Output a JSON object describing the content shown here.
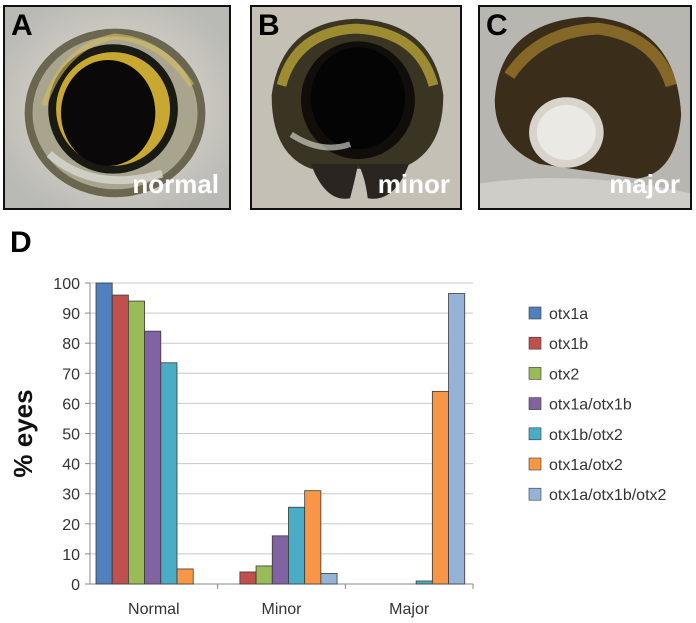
{
  "panels": [
    {
      "letter": "A",
      "label": "normal"
    },
    {
      "letter": "B",
      "label": "minor"
    },
    {
      "letter": "C",
      "label": "major"
    }
  ],
  "chart_letter": "D",
  "chart_data": {
    "type": "bar",
    "title": "",
    "xlabel": "",
    "ylabel": "% eyes",
    "ylim": [
      0,
      100
    ],
    "yticks": [
      0,
      10,
      20,
      30,
      40,
      50,
      60,
      70,
      80,
      90,
      100
    ],
    "grid": true,
    "legend": "right",
    "categories": [
      "Normal",
      "Minor",
      "Major"
    ],
    "series": [
      {
        "name": "otx1a",
        "color": "#4f81bd",
        "values": [
          100,
          0,
          0
        ]
      },
      {
        "name": "otx1b",
        "color": "#c0504d",
        "values": [
          96,
          4,
          0
        ]
      },
      {
        "name": "otx2",
        "color": "#9bbb59",
        "values": [
          94,
          6,
          0
        ]
      },
      {
        "name": "otx1a/otx1b",
        "color": "#8064a2",
        "values": [
          84,
          16,
          0
        ]
      },
      {
        "name": "otx1b/otx2",
        "color": "#4bacc6",
        "values": [
          73.5,
          25.5,
          1
        ]
      },
      {
        "name": "otx1a/otx2",
        "color": "#f79646",
        "values": [
          5,
          31,
          64
        ]
      },
      {
        "name": "otx1a/otx1b/otx2",
        "color": "#95b3d7",
        "values": [
          0,
          3.5,
          96.5
        ]
      }
    ]
  }
}
